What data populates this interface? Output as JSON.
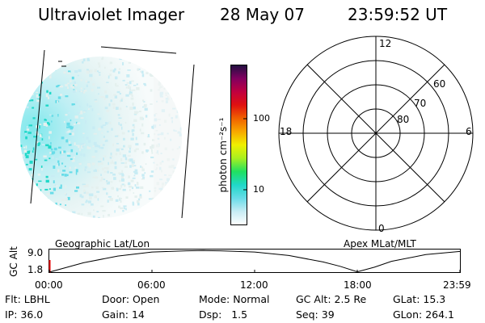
{
  "header": {
    "instrument": "Ultraviolet Imager",
    "date": "28 May 07",
    "time": "23:59:52 UT"
  },
  "colorbar": {
    "unit_label": "photon cm⁻²s⁻¹",
    "ticks": [
      {
        "label": "100",
        "value": 100
      },
      {
        "label": "10",
        "value": 10
      }
    ],
    "colors": [
      "#ffffff",
      "#c8ecf4",
      "#68dce8",
      "#20d8c8",
      "#20e060",
      "#a8f020",
      "#f0f000",
      "#f8a800",
      "#f06000",
      "#e01010",
      "#c00040",
      "#800060",
      "#201040"
    ]
  },
  "polar_plot": {
    "mlt_labels": [
      {
        "label": "12",
        "pos": "top"
      },
      {
        "label": "18",
        "pos": "left"
      },
      {
        "label": "6",
        "pos": "right"
      },
      {
        "label": "0",
        "pos": "bottom"
      }
    ],
    "lat_labels": [
      "60",
      "70",
      "80"
    ]
  },
  "altitude_plot": {
    "axis_label": "GC Alt",
    "left_caption": "Geographic Lat/Lon",
    "right_caption": "Apex MLat/MLT",
    "y_ticks": [
      "9.0",
      "1.8"
    ],
    "x_ticks": [
      "00:00",
      "06:00",
      "12:00",
      "18:00",
      "23:59"
    ]
  },
  "chart_data": {
    "type": "line",
    "ylabel": "GC Alt",
    "x_ticks": [
      "00:00",
      "06:00",
      "12:00",
      "18:00",
      "23:59"
    ],
    "y_ticks": [
      1.8,
      9.0
    ],
    "series": [
      {
        "x": [
          0,
          2,
          4,
          6,
          8,
          9,
          10,
          12,
          14,
          16,
          17,
          18,
          19,
          20,
          22,
          24
        ],
        "y": [
          1.8,
          5.0,
          7.3,
          8.7,
          9.1,
          9.2,
          9.1,
          8.7,
          7.5,
          5.3,
          3.8,
          1.9,
          3.5,
          5.5,
          7.8,
          8.9
        ]
      }
    ]
  },
  "info": {
    "row1": [
      {
        "label": "Flt:",
        "value": "LBHL"
      },
      {
        "label": "Door:",
        "value": "Open"
      },
      {
        "label": "Mode:",
        "value": "Normal"
      },
      {
        "label": "GC Alt:",
        "value": "2.5 Re"
      },
      {
        "label": "GLat:",
        "value": "15.3"
      }
    ],
    "row2": [
      {
        "label": "IP:",
        "value": "36.0"
      },
      {
        "label": "Gain:",
        "value": "14"
      },
      {
        "label": "Dsp:",
        "value": "1.5"
      },
      {
        "label": "Seq:",
        "value": "39"
      },
      {
        "label": "GLon:",
        "value": "264.1"
      }
    ]
  }
}
